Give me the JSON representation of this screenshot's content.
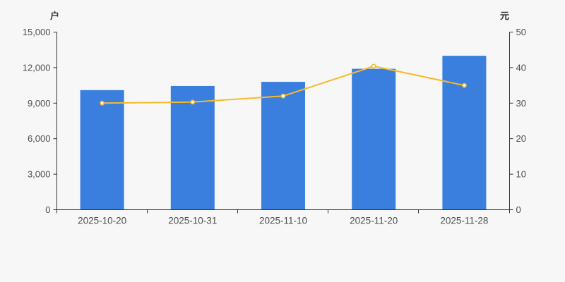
{
  "chart_data": {
    "type": "bar",
    "combo": "bar+line dual axis",
    "title": "",
    "categories": [
      "2025-10-20",
      "2025-10-31",
      "2025-11-10",
      "2025-11-20",
      "2025-11-28"
    ],
    "series": [
      {
        "id": "bars",
        "type": "bar",
        "axis": "left",
        "values": [
          10100,
          10450,
          10800,
          11900,
          13000
        ]
      },
      {
        "id": "line",
        "type": "line",
        "axis": "right",
        "values": [
          30.0,
          30.3,
          32.0,
          40.4,
          35.0
        ]
      }
    ],
    "left_axis": {
      "unit": "户",
      "min": 0,
      "max": 15000,
      "step": 3000,
      "tick_labels": [
        "0",
        "3,000",
        "6,000",
        "9,000",
        "12,000",
        "15,000"
      ]
    },
    "right_axis": {
      "unit": "元",
      "min": 0,
      "max": 50,
      "step": 10,
      "tick_labels": [
        "0",
        "10",
        "20",
        "30",
        "40",
        "50"
      ]
    },
    "legend": null,
    "grid": false,
    "colors": {
      "bar": "#3b7fde",
      "line": "#f7ba2a",
      "marker_fill": "#ffffff",
      "axis": "#333333",
      "tick_label": "#4d4d4d",
      "background": "#f7f7f7"
    }
  }
}
